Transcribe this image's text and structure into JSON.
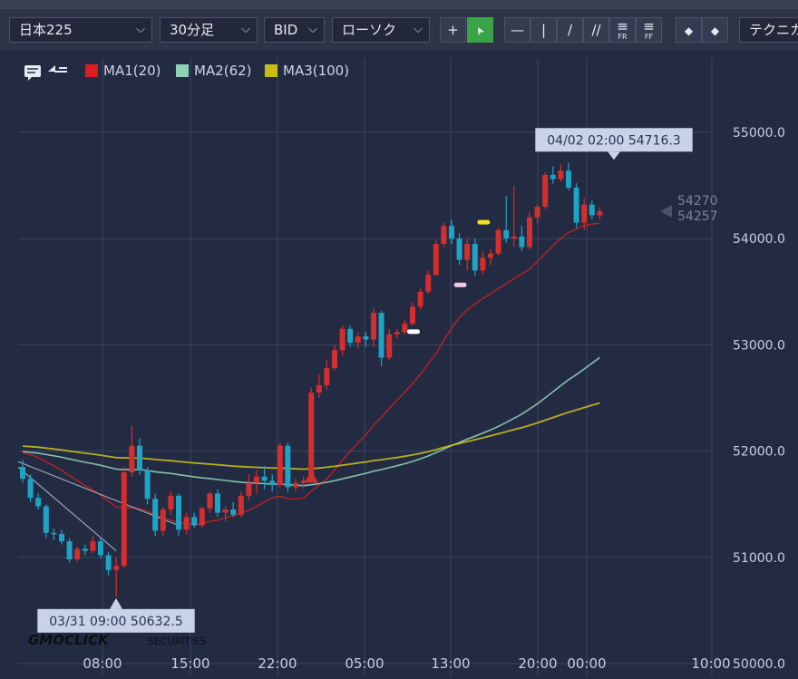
{
  "toolbar": {
    "symbol": "日本225",
    "timeframe": "30分足",
    "price_side": "BID",
    "chart_style": "ローソク",
    "indicators_label": "テクニカ",
    "dropdown_glyph": "⌵",
    "crosshair_glyph": "+",
    "pointer_glyph": "➤",
    "hline_glyph": "—",
    "vline_glyph": "|",
    "trend_glyph": "/",
    "channel_glyph": "//",
    "fib_glyph": "≡",
    "fib_label": "FR",
    "fan_label": "FF",
    "eraser_glyph": "◆"
  },
  "chart_data": {
    "type": "candlestick",
    "legend": [
      {
        "name": "MA1(20)",
        "color": "#d91e1e"
      },
      {
        "name": "MA2(62)",
        "color": "#8fd1b5"
      },
      {
        "name": "MA3(100)",
        "color": "#c8bc1c"
      }
    ],
    "colors": {
      "up": "#d32f2f",
      "down": "#1fa3c4",
      "grid": "#3b4560",
      "text": "#c8d0de"
    },
    "y_ticks": [
      "55000.0",
      "54000.0",
      "53000.0",
      "52000.0",
      "51000.0",
      "50000.0"
    ],
    "x_ticks": [
      "08:00",
      "15:00",
      "22:00",
      "05:00",
      "13:00",
      "20:00",
      "00:00",
      "10:00"
    ],
    "ylim": [
      49880,
      55700
    ],
    "high_annotation": "04/02 02:00 54716.3",
    "high_value": 54716.3,
    "low_annotation": "03/31 09:00 50632.5",
    "low_value": 50632.5,
    "last_ask": "54270",
    "last_bid": "54257",
    "last_value": 54257,
    "candles": [
      {
        "o": 51850,
        "h": 51920,
        "l": 51700,
        "c": 51740
      },
      {
        "o": 51740,
        "h": 51780,
        "l": 51520,
        "c": 51560
      },
      {
        "o": 51560,
        "h": 51600,
        "l": 51450,
        "c": 51480
      },
      {
        "o": 51480,
        "h": 51500,
        "l": 51180,
        "c": 51230
      },
      {
        "o": 51230,
        "h": 51270,
        "l": 51160,
        "c": 51220
      },
      {
        "o": 51220,
        "h": 51260,
        "l": 51120,
        "c": 51150
      },
      {
        "o": 51150,
        "h": 51180,
        "l": 50950,
        "c": 50980
      },
      {
        "o": 50980,
        "h": 51100,
        "l": 50960,
        "c": 51080
      },
      {
        "o": 51080,
        "h": 51120,
        "l": 51020,
        "c": 51060
      },
      {
        "o": 51060,
        "h": 51200,
        "l": 51040,
        "c": 51150
      },
      {
        "o": 51150,
        "h": 51180,
        "l": 50990,
        "c": 51020
      },
      {
        "o": 51020,
        "h": 51050,
        "l": 50830,
        "c": 50880
      },
      {
        "o": 50880,
        "h": 51000,
        "l": 50633,
        "c": 50920
      },
      {
        "o": 50920,
        "h": 51850,
        "l": 50900,
        "c": 51800
      },
      {
        "o": 51800,
        "h": 52240,
        "l": 51760,
        "c": 52050
      },
      {
        "o": 52050,
        "h": 52120,
        "l": 51780,
        "c": 51820
      },
      {
        "o": 51820,
        "h": 51850,
        "l": 51500,
        "c": 51550
      },
      {
        "o": 51550,
        "h": 51600,
        "l": 51200,
        "c": 51250
      },
      {
        "o": 51250,
        "h": 51480,
        "l": 51200,
        "c": 51450
      },
      {
        "o": 51450,
        "h": 51620,
        "l": 51400,
        "c": 51580
      },
      {
        "o": 51580,
        "h": 51600,
        "l": 51200,
        "c": 51260
      },
      {
        "o": 51260,
        "h": 51420,
        "l": 51220,
        "c": 51380
      },
      {
        "o": 51380,
        "h": 51420,
        "l": 51280,
        "c": 51300
      },
      {
        "o": 51300,
        "h": 51480,
        "l": 51280,
        "c": 51460
      },
      {
        "o": 51460,
        "h": 51620,
        "l": 51420,
        "c": 51600
      },
      {
        "o": 51600,
        "h": 51640,
        "l": 51380,
        "c": 51420
      },
      {
        "o": 51420,
        "h": 51480,
        "l": 51340,
        "c": 51450
      },
      {
        "o": 51450,
        "h": 51520,
        "l": 51380,
        "c": 51400
      },
      {
        "o": 51400,
        "h": 51620,
        "l": 51380,
        "c": 51580
      },
      {
        "o": 51580,
        "h": 51780,
        "l": 51540,
        "c": 51700
      },
      {
        "o": 51700,
        "h": 51820,
        "l": 51600,
        "c": 51760
      },
      {
        "o": 51760,
        "h": 51860,
        "l": 51640,
        "c": 51720
      },
      {
        "o": 51720,
        "h": 51780,
        "l": 51620,
        "c": 51680
      },
      {
        "o": 51680,
        "h": 52080,
        "l": 51660,
        "c": 52050
      },
      {
        "o": 52050,
        "h": 52080,
        "l": 51620,
        "c": 51660
      },
      {
        "o": 51660,
        "h": 51740,
        "l": 51620,
        "c": 51700
      },
      {
        "o": 51700,
        "h": 51760,
        "l": 51650,
        "c": 51720
      },
      {
        "o": 51720,
        "h": 52600,
        "l": 51700,
        "c": 52550
      },
      {
        "o": 52550,
        "h": 52720,
        "l": 52500,
        "c": 52620
      },
      {
        "o": 52620,
        "h": 52860,
        "l": 52580,
        "c": 52780
      },
      {
        "o": 52780,
        "h": 53000,
        "l": 52760,
        "c": 52950
      },
      {
        "o": 52950,
        "h": 53180,
        "l": 52900,
        "c": 53150
      },
      {
        "o": 53150,
        "h": 53180,
        "l": 52980,
        "c": 53020
      },
      {
        "o": 53020,
        "h": 53120,
        "l": 52960,
        "c": 53080
      },
      {
        "o": 53080,
        "h": 53120,
        "l": 52980,
        "c": 53050
      },
      {
        "o": 53050,
        "h": 53350,
        "l": 52980,
        "c": 53300
      },
      {
        "o": 53300,
        "h": 53320,
        "l": 52800,
        "c": 52880
      },
      {
        "o": 52880,
        "h": 53150,
        "l": 52860,
        "c": 53100
      },
      {
        "o": 53100,
        "h": 53150,
        "l": 53060,
        "c": 53120
      },
      {
        "o": 53120,
        "h": 53230,
        "l": 53100,
        "c": 53200
      },
      {
        "o": 53200,
        "h": 53400,
        "l": 53180,
        "c": 53360
      },
      {
        "o": 53360,
        "h": 53530,
        "l": 53330,
        "c": 53500
      },
      {
        "o": 53500,
        "h": 53700,
        "l": 53480,
        "c": 53660
      },
      {
        "o": 53660,
        "h": 53980,
        "l": 53650,
        "c": 53950
      },
      {
        "o": 53950,
        "h": 54150,
        "l": 53920,
        "c": 54120
      },
      {
        "o": 54120,
        "h": 54180,
        "l": 53950,
        "c": 54000
      },
      {
        "o": 54000,
        "h": 54050,
        "l": 53750,
        "c": 53800
      },
      {
        "o": 53800,
        "h": 54000,
        "l": 53700,
        "c": 53950
      },
      {
        "o": 53950,
        "h": 54000,
        "l": 53650,
        "c": 53700
      },
      {
        "o": 53700,
        "h": 53880,
        "l": 53660,
        "c": 53820
      },
      {
        "o": 53820,
        "h": 53900,
        "l": 53750,
        "c": 53860
      },
      {
        "o": 53860,
        "h": 54100,
        "l": 53840,
        "c": 54080
      },
      {
        "o": 54080,
        "h": 54400,
        "l": 53960,
        "c": 54000
      },
      {
        "o": 54000,
        "h": 54500,
        "l": 53920,
        "c": 54020
      },
      {
        "o": 54020,
        "h": 54120,
        "l": 53880,
        "c": 53920
      },
      {
        "o": 53920,
        "h": 54250,
        "l": 53900,
        "c": 54200
      },
      {
        "o": 54200,
        "h": 54320,
        "l": 54150,
        "c": 54300
      },
      {
        "o": 54300,
        "h": 54620,
        "l": 54280,
        "c": 54600
      },
      {
        "o": 54600,
        "h": 54680,
        "l": 54520,
        "c": 54560
      },
      {
        "o": 54560,
        "h": 54700,
        "l": 54540,
        "c": 54640
      },
      {
        "o": 54640,
        "h": 54716,
        "l": 54450,
        "c": 54480
      },
      {
        "o": 54480,
        "h": 54520,
        "l": 54100,
        "c": 54150
      },
      {
        "o": 54150,
        "h": 54380,
        "l": 54080,
        "c": 54320
      },
      {
        "o": 54320,
        "h": 54360,
        "l": 54180,
        "c": 54220
      },
      {
        "o": 54220,
        "h": 54300,
        "l": 54180,
        "c": 54257
      }
    ]
  },
  "footer": {
    "brand": "GMOCLICK",
    "brand_suffix": "SECURITIES"
  }
}
